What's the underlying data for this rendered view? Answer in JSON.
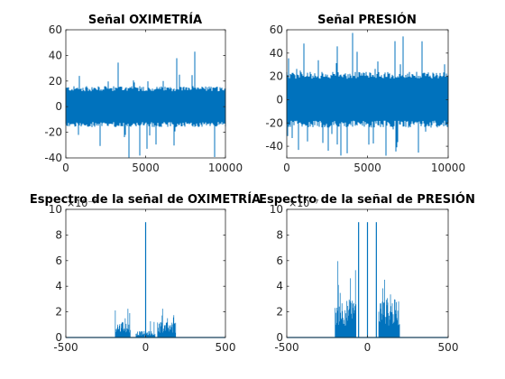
{
  "figure": {
    "background": "#ffffff",
    "line_color": "#0072bd"
  },
  "chart_data": [
    {
      "type": "line",
      "title": "Señal OXIMETRÍA",
      "xlim": [
        0,
        10000
      ],
      "ylim": [
        -40,
        60
      ],
      "xticks": [
        0,
        5000,
        10000
      ],
      "xtick_labels": [
        "0",
        "5000",
        "10000"
      ],
      "yticks": [
        -40,
        -20,
        0,
        20,
        40,
        60
      ],
      "ytick_labels": [
        "-40",
        "-20",
        "0",
        "20",
        "40",
        "60"
      ],
      "exponent_label": "",
      "series": [
        {
          "kind": "noise",
          "x_start": 0,
          "x_end": 10000,
          "n_samples": 10000,
          "center": 0,
          "core_amplitude": 16,
          "peak_max": 44,
          "peak_min": -40,
          "color": "#0072bd"
        }
      ]
    },
    {
      "type": "line",
      "title": "Señal PRESIÓN",
      "xlim": [
        0,
        10000
      ],
      "ylim": [
        -50,
        60
      ],
      "xticks": [
        0,
        5000,
        10000
      ],
      "xtick_labels": [
        "0",
        "5000",
        "10000"
      ],
      "yticks": [
        -40,
        -20,
        0,
        20,
        40,
        60
      ],
      "ytick_labels": [
        "-40",
        "-20",
        "0",
        "20",
        "40",
        "60"
      ],
      "exponent_label": "",
      "series": [
        {
          "kind": "noise",
          "x_start": 0,
          "x_end": 10000,
          "n_samples": 10000,
          "center": 0,
          "core_amplitude": 24,
          "peak_max": 60,
          "peak_min": -50,
          "color": "#0072bd"
        }
      ]
    },
    {
      "type": "line",
      "title": "Espectro de la señal de OXIMETRÍA",
      "xlim": [
        -500,
        500
      ],
      "ylim": [
        0,
        10
      ],
      "xticks": [
        -500,
        0,
        500
      ],
      "xtick_labels": [
        "-500",
        "0",
        "500"
      ],
      "yticks": [
        0,
        2,
        4,
        6,
        8,
        10
      ],
      "ytick_labels": [
        "0",
        "2",
        "4",
        "6",
        "8",
        "10"
      ],
      "exponent_label": "×10⁻⁷",
      "series": [
        {
          "kind": "spectrum",
          "color": "#0072bd",
          "center_peak": {
            "x": 0,
            "y": 9.0
          },
          "bands": [
            {
              "x_start": -190,
              "x_end": -95,
              "typical": 1.2,
              "max": 2.4
            },
            {
              "x_start": -60,
              "x_end": -5,
              "typical": 0.5,
              "max": 1.6
            },
            {
              "x_start": 5,
              "x_end": 60,
              "typical": 0.5,
              "max": 1.6
            },
            {
              "x_start": 75,
              "x_end": 190,
              "typical": 1.2,
              "max": 2.4
            }
          ]
        }
      ]
    },
    {
      "type": "line",
      "title": "Espectro de la señal de PRESIÓN",
      "xlim": [
        -500,
        500
      ],
      "ylim": [
        0,
        10
      ],
      "xticks": [
        -500,
        0,
        500
      ],
      "xtick_labels": [
        "-500",
        "0",
        "500"
      ],
      "yticks": [
        0,
        2,
        4,
        6,
        8,
        10
      ],
      "ytick_labels": [
        "0",
        "2",
        "4",
        "6",
        "8",
        "10"
      ],
      "exponent_label": "×10⁻⁷",
      "series": [
        {
          "kind": "spectrum",
          "color": "#0072bd",
          "center_peak": {
            "x": 0,
            "y": 9.0
          },
          "side_peaks": [
            {
              "x": -55,
              "y": 9.0
            },
            {
              "x": 55,
              "y": 9.0
            }
          ],
          "bands": [
            {
              "x_start": -200,
              "x_end": -70,
              "typical": 3.0,
              "max": 6.0
            },
            {
              "x_start": 70,
              "x_end": 200,
              "typical": 3.0,
              "max": 6.0
            }
          ]
        }
      ]
    }
  ]
}
